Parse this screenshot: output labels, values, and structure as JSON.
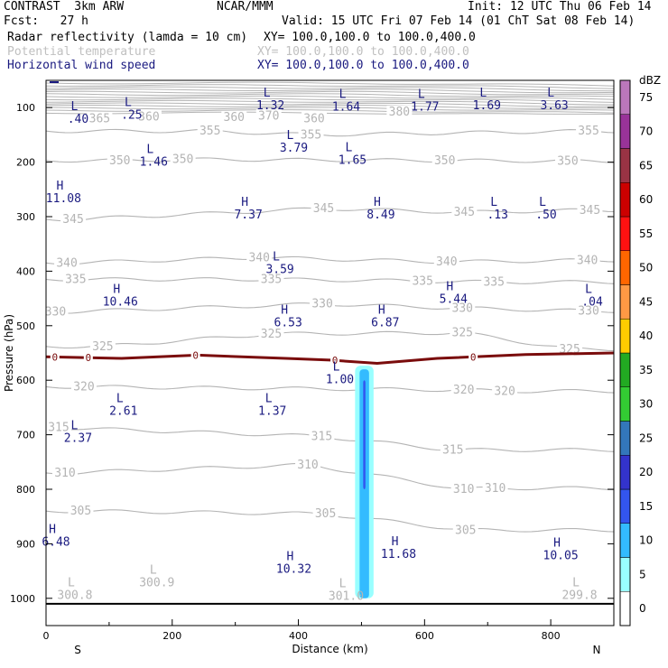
{
  "header": {
    "model": "CONTRAST  3km ARW",
    "org": "NCAR/MMM",
    "init": "Init: 12 UTC Thu 06 Feb 14",
    "fcst": "Fcst:   27 h",
    "valid": "Valid: 15 UTC Fri 07 Feb 14 (01 ChT Sat 08 Feb 14)",
    "field1": "Radar reflectivity (lamda = 10 cm)",
    "field1_xy": "XY= 100.0,100.0 to 100.0,400.0",
    "field2": "Potential temperature",
    "field2_xy": "XY= 100.0,100.0 to 100.0,400.0",
    "field3": "Horizontal wind speed",
    "field3_xy": "XY= 100.0,100.0 to 100.0,400.0"
  },
  "colors": {
    "navy": "#1a1a80",
    "theta": "#b4b4b4",
    "freezing": "#7a0c0c",
    "ground": "#000000"
  },
  "chart_data": {
    "type": "heatmap",
    "title": "Radar reflectivity / Potential temperature / Horizontal wind speed cross-section",
    "xlabel": "Distance (km)",
    "ylabel": "Pressure (hPa)",
    "xlim": [
      0,
      900
    ],
    "ylim": [
      1050,
      50
    ],
    "x_ticks": [
      0,
      200,
      400,
      600,
      800
    ],
    "y_ticks": [
      100,
      200,
      300,
      400,
      500,
      600,
      700,
      800,
      900,
      1000
    ],
    "endpoints": {
      "left": "S",
      "right": "N"
    },
    "colorbar": {
      "label": "dBZ",
      "levels": [
        0,
        5,
        10,
        15,
        20,
        25,
        30,
        35,
        40,
        45,
        50,
        55,
        60,
        65,
        70,
        75
      ],
      "colors": [
        "#ffffff",
        "#99ffff",
        "#33bbff",
        "#3355ee",
        "#3333cc",
        "#3377bb",
        "#33cc33",
        "#22aa22",
        "#ffcc00",
        "#ff9944",
        "#ff6600",
        "#ff1111",
        "#cc0000",
        "#993344",
        "#993399",
        "#bb77bb"
      ]
    },
    "theta_labels": [
      {
        "x": 85,
        "p": 120,
        "v": "365"
      },
      {
        "x": 163,
        "p": 117,
        "v": "360"
      },
      {
        "x": 298,
        "p": 118,
        "v": "360"
      },
      {
        "x": 353,
        "p": 115,
        "v": "370"
      },
      {
        "x": 425,
        "p": 120,
        "v": "360"
      },
      {
        "x": 560,
        "p": 108,
        "v": "380"
      },
      {
        "x": 260,
        "p": 143,
        "v": "355"
      },
      {
        "x": 420,
        "p": 150,
        "v": "355"
      },
      {
        "x": 860,
        "p": 143,
        "v": "355"
      },
      {
        "x": 117,
        "p": 197,
        "v": "350"
      },
      {
        "x": 217,
        "p": 195,
        "v": "350"
      },
      {
        "x": 632,
        "p": 197,
        "v": "350"
      },
      {
        "x": 827,
        "p": 198,
        "v": "350"
      },
      {
        "x": 43,
        "p": 305,
        "v": "345"
      },
      {
        "x": 440,
        "p": 285,
        "v": "345"
      },
      {
        "x": 663,
        "p": 292,
        "v": "345"
      },
      {
        "x": 862,
        "p": 288,
        "v": "345"
      },
      {
        "x": 33,
        "p": 385,
        "v": "340"
      },
      {
        "x": 338,
        "p": 375,
        "v": "340"
      },
      {
        "x": 635,
        "p": 383,
        "v": "340"
      },
      {
        "x": 858,
        "p": 380,
        "v": "340"
      },
      {
        "x": 47,
        "p": 415,
        "v": "335"
      },
      {
        "x": 357,
        "p": 415,
        "v": "335"
      },
      {
        "x": 597,
        "p": 418,
        "v": "335"
      },
      {
        "x": 710,
        "p": 420,
        "v": "335"
      },
      {
        "x": 15,
        "p": 475,
        "v": "330"
      },
      {
        "x": 438,
        "p": 460,
        "v": "330"
      },
      {
        "x": 660,
        "p": 468,
        "v": "330"
      },
      {
        "x": 860,
        "p": 473,
        "v": "330"
      },
      {
        "x": 90,
        "p": 538,
        "v": "325"
      },
      {
        "x": 357,
        "p": 515,
        "v": "325"
      },
      {
        "x": 660,
        "p": 513,
        "v": "325"
      },
      {
        "x": 830,
        "p": 543,
        "v": "325"
      },
      {
        "x": 60,
        "p": 612,
        "v": "320"
      },
      {
        "x": 662,
        "p": 618,
        "v": "320"
      },
      {
        "x": 727,
        "p": 620,
        "v": "320"
      },
      {
        "x": 20,
        "p": 687,
        "v": "315"
      },
      {
        "x": 437,
        "p": 703,
        "v": "315"
      },
      {
        "x": 645,
        "p": 728,
        "v": "315"
      },
      {
        "x": 30,
        "p": 770,
        "v": "310"
      },
      {
        "x": 415,
        "p": 755,
        "v": "310"
      },
      {
        "x": 662,
        "p": 800,
        "v": "310"
      },
      {
        "x": 712,
        "p": 798,
        "v": "310"
      },
      {
        "x": 55,
        "p": 840,
        "v": "305"
      },
      {
        "x": 443,
        "p": 845,
        "v": "305"
      },
      {
        "x": 665,
        "p": 875,
        "v": "305"
      }
    ],
    "freezing_level": {
      "label": "0",
      "label_x": [
        14,
        67,
        237,
        458,
        677
      ]
    },
    "lh_markers": [
      {
        "x": 45,
        "p": 105,
        "t": "L",
        "v": ".40"
      },
      {
        "x": 130,
        "p": 97,
        "t": "L",
        "v": ".25"
      },
      {
        "x": 350,
        "p": 80,
        "t": "L",
        "v": "1.32"
      },
      {
        "x": 470,
        "p": 82,
        "t": "L",
        "v": "1.64"
      },
      {
        "x": 595,
        "p": 82,
        "t": "L",
        "v": "1.77"
      },
      {
        "x": 693,
        "p": 80,
        "t": "L",
        "v": "1.69"
      },
      {
        "x": 800,
        "p": 80,
        "t": "L",
        "v": "3.63"
      },
      {
        "x": 165,
        "p": 183,
        "t": "L",
        "v": "1.46"
      },
      {
        "x": 387,
        "p": 158,
        "t": "L",
        "v": "3.79"
      },
      {
        "x": 480,
        "p": 180,
        "t": "L",
        "v": "1.65"
      },
      {
        "x": 22,
        "p": 250,
        "t": "H",
        "v": "11.08"
      },
      {
        "x": 315,
        "p": 280,
        "t": "H",
        "v": "7.37"
      },
      {
        "x": 525,
        "p": 280,
        "t": "H",
        "v": "8.49"
      },
      {
        "x": 710,
        "p": 280,
        "t": "L",
        "v": ".13"
      },
      {
        "x": 787,
        "p": 280,
        "t": "L",
        "v": ".50"
      },
      {
        "x": 365,
        "p": 380,
        "t": "L",
        "v": "3.59"
      },
      {
        "x": 112,
        "p": 440,
        "t": "H",
        "v": "10.46"
      },
      {
        "x": 378,
        "p": 478,
        "t": "H",
        "v": "6.53"
      },
      {
        "x": 532,
        "p": 478,
        "t": "H",
        "v": "6.87"
      },
      {
        "x": 640,
        "p": 435,
        "t": "H",
        "v": "5.44"
      },
      {
        "x": 860,
        "p": 440,
        "t": "L",
        "v": ".04"
      },
      {
        "x": 460,
        "p": 582,
        "t": "L",
        "v": "1.00"
      },
      {
        "x": 117,
        "p": 640,
        "t": "L",
        "v": "2.61"
      },
      {
        "x": 353,
        "p": 640,
        "t": "L",
        "v": "1.37"
      },
      {
        "x": 45,
        "p": 690,
        "t": "L",
        "v": "2.37"
      },
      {
        "x": 10,
        "p": 880,
        "t": "H",
        "v": "6.48"
      },
      {
        "x": 387,
        "p": 930,
        "t": "H",
        "v": "10.32"
      },
      {
        "x": 553,
        "p": 903,
        "t": "H",
        "v": "11.68"
      },
      {
        "x": 810,
        "p": 905,
        "t": "H",
        "v": "10.05"
      }
    ],
    "surface_markers": [
      {
        "x": 40,
        "p": 978,
        "t": "L",
        "v": "300.8"
      },
      {
        "x": 170,
        "p": 955,
        "t": "L",
        "v": "300.9"
      },
      {
        "x": 470,
        "p": 980,
        "t": "L",
        "v": "301.0"
      },
      {
        "x": 840,
        "p": 978,
        "t": "L",
        "v": "299.8"
      }
    ],
    "reflectivity_column": {
      "x_range": [
        497,
        512
      ],
      "p_top": 580,
      "p_bottom": 1000,
      "core_dbz": 20
    },
    "ground_p": 1010
  }
}
